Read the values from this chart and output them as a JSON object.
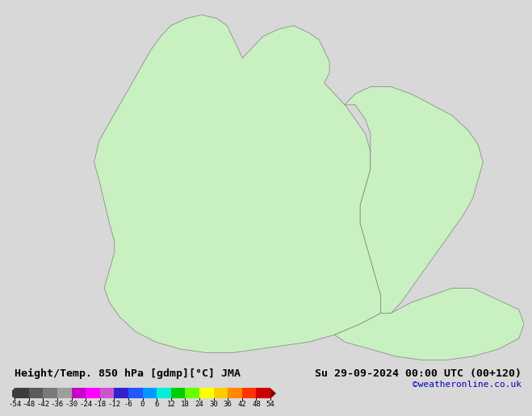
{
  "title_left": "Height/Temp. 850 hPa [gdmp][°C] JMA",
  "title_right": "Su 29-09-2024 00:00 UTC (00+120)",
  "credit": "©weatheronline.co.uk",
  "colorbar_ticks": [
    -54,
    -48,
    -42,
    -36,
    -30,
    -24,
    -18,
    -12,
    -6,
    0,
    6,
    12,
    18,
    24,
    30,
    36,
    42,
    48,
    54
  ],
  "colorbar_colors": [
    "#3c3c3c",
    "#5a5a5a",
    "#7a7a7a",
    "#9e9e9e",
    "#c800c8",
    "#ff00ff",
    "#cc55cc",
    "#3322cc",
    "#2255ff",
    "#0099ff",
    "#00eedd",
    "#00cc00",
    "#66ff00",
    "#ffff00",
    "#ffcc00",
    "#ff8800",
    "#ff3300",
    "#cc0000",
    "#880000"
  ],
  "bg_color": "#d8d8d8",
  "sea_color": "#d8d8d8",
  "land_color": "#c8f0c0",
  "border_color": "#808080",
  "credit_color": "#0000bb",
  "map_extent": [
    3,
    35,
    54,
    72
  ],
  "title_fontsize": 9.5,
  "tick_fontsize": 6.5,
  "credit_fontsize": 8
}
